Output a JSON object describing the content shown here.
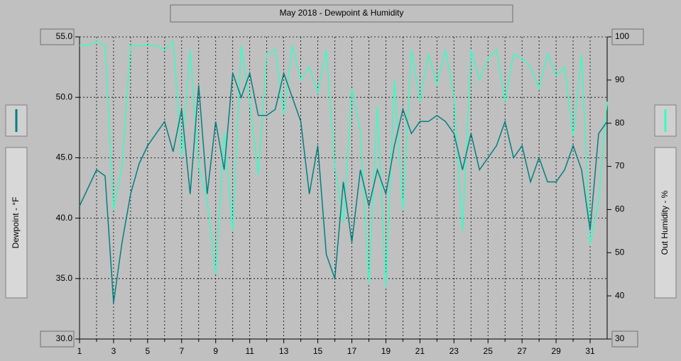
{
  "chart_data": {
    "type": "line",
    "title": "May 2018 - Dewpoint & Humidity",
    "x": [
      1,
      1.5,
      2,
      2.5,
      3,
      3.5,
      4,
      4.5,
      5,
      5.5,
      6,
      6.5,
      7,
      7.5,
      8,
      8.5,
      9,
      9.5,
      10,
      10.5,
      11,
      11.5,
      12,
      12.5,
      13,
      13.5,
      14,
      14.5,
      15,
      15.5,
      16,
      16.5,
      17,
      17.5,
      18,
      18.5,
      19,
      19.5,
      20,
      20.5,
      21,
      21.5,
      22,
      22.5,
      23,
      23.5,
      24,
      24.5,
      25,
      25.5,
      26,
      26.5,
      27,
      27.5,
      28,
      28.5,
      29,
      29.5,
      30,
      30.5,
      31,
      31.5,
      32
    ],
    "series": [
      {
        "name": "Dewpoint - °F",
        "color": "#008080",
        "values": [
          41,
          42.5,
          44,
          43.5,
          33,
          38,
          42,
          44.5,
          46,
          47,
          48,
          45.5,
          49,
          42,
          51,
          42,
          48,
          44,
          52,
          50,
          52,
          48.5,
          48.5,
          49,
          52,
          50,
          48,
          42,
          46,
          37,
          35,
          43,
          38,
          44,
          41,
          44,
          42,
          46,
          49,
          47,
          48,
          48,
          48.5,
          48,
          47,
          44,
          47,
          44,
          45,
          46,
          48,
          45,
          46,
          43,
          45,
          43,
          43,
          44,
          46,
          44,
          39,
          47,
          48
        ]
      },
      {
        "name": "Out Humidity - %",
        "color": "#33ffc4",
        "axis": "y2",
        "values": [
          98,
          98,
          99,
          98,
          60,
          70,
          98,
          98,
          98,
          98,
          97,
          99,
          72,
          97,
          70,
          62,
          45,
          78,
          55,
          98,
          85,
          68,
          96,
          97,
          82,
          98,
          90,
          93,
          87,
          97,
          70,
          57,
          88,
          78,
          43,
          84,
          42,
          90,
          60,
          97,
          85,
          96,
          89,
          97,
          86,
          55,
          97,
          90,
          95,
          97,
          85,
          96,
          95,
          93,
          88,
          96,
          91,
          93,
          77,
          96,
          52,
          62,
          85
        ]
      }
    ],
    "xlim": [
      1,
      32
    ],
    "xticks": [
      1,
      3,
      5,
      7,
      9,
      11,
      13,
      15,
      17,
      19,
      21,
      23,
      25,
      27,
      29,
      31
    ],
    "xminorticks": [
      2,
      4,
      6,
      8,
      10,
      12,
      14,
      16,
      18,
      20,
      22,
      24,
      26,
      28,
      30
    ],
    "ylim": [
      30,
      55
    ],
    "yticks": [
      {
        "value": 30,
        "label": "30.0"
      },
      {
        "value": 35,
        "label": "35.0"
      },
      {
        "value": 40,
        "label": "40.0"
      },
      {
        "value": 45,
        "label": "45.0"
      },
      {
        "value": 50,
        "label": "50.0"
      },
      {
        "value": 55,
        "label": "55.0"
      }
    ],
    "y2lim": [
      30,
      100
    ],
    "y2ticks": [
      30,
      40,
      50,
      60,
      70,
      80,
      90,
      100
    ],
    "grid": true
  }
}
